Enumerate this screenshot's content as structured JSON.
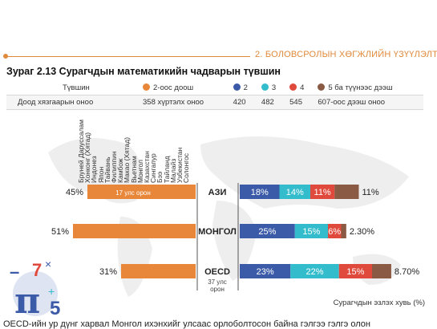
{
  "header": {
    "section_title": "2. БОЛОВСРОЛЫН ХӨГЖЛИЙН ҮЗҮҮЛЭЛТ"
  },
  "figure_title": "Зураг 2.13 Сурагчдын математикийн чадварын түвшин",
  "levels_table": {
    "row1_label": "Түвшин",
    "row2_label": "Доод хязгаарын оноо",
    "levels": [
      {
        "label": "2-оос доош",
        "score": "358 хүртэлх оноо",
        "color": "#e8873a"
      },
      {
        "label": "2",
        "score": "420",
        "color": "#3b5aa8"
      },
      {
        "label": "3",
        "score": "482",
        "color": "#33bccc"
      },
      {
        "label": "4",
        "score": "545",
        "color": "#e04a3c"
      },
      {
        "label": "5 ба түүнээс дээш",
        "score": "607-оос дээш оноо",
        "color": "#8a5a44"
      }
    ]
  },
  "countries": [
    "Бруней Даруссалам",
    "Хонконг (Хятад)",
    "Индонез",
    "Япон",
    "Тайвань",
    "Филиппин",
    "Камбож",
    "Макао (Хятад)",
    "Вьетнам",
    "Монгол",
    "Казахстан",
    "Сингапур",
    "Бээ",
    "Тайланд",
    "Малайз",
    "Узбекистан",
    "Солонгос"
  ],
  "chart_data": {
    "type": "bar",
    "orientation": "horizontal",
    "categories": [
      "АЗИ",
      "МОНГОЛ",
      "OECD"
    ],
    "category_notes": [
      "17 улс орон",
      "",
      "37 улс орон"
    ],
    "series": [
      {
        "name": "2-оос доош",
        "values": [
          45,
          51,
          31
        ],
        "labels": [
          "45%",
          "51%",
          "31%"
        ],
        "color": "#e8873a"
      },
      {
        "name": "2",
        "values": [
          18,
          25,
          23
        ],
        "labels": [
          "18%",
          "25%",
          "23%"
        ],
        "color": "#3b5aa8"
      },
      {
        "name": "3",
        "values": [
          14,
          15,
          22
        ],
        "labels": [
          "14%",
          "15%",
          "22%"
        ],
        "color": "#33bccc"
      },
      {
        "name": "4",
        "values": [
          11,
          6,
          15
        ],
        "labels": [
          "11%",
          "6%",
          "15%"
        ],
        "color": "#e04a3c"
      },
      {
        "name": "5 ба түүнээс дээш",
        "values": [
          11,
          2.3,
          8.7
        ],
        "labels": [
          "11%",
          "2.30%",
          "8.70%"
        ],
        "color": "#8a5a44"
      }
    ],
    "xlabel": "Сурагчдын эзлэх хувь (%)"
  },
  "footer_text": "OECD-ийн ур дүнг харвал Монгол ихэнхийг улсаас орлоболтосон байна гэлгээ гэлгэ олон"
}
